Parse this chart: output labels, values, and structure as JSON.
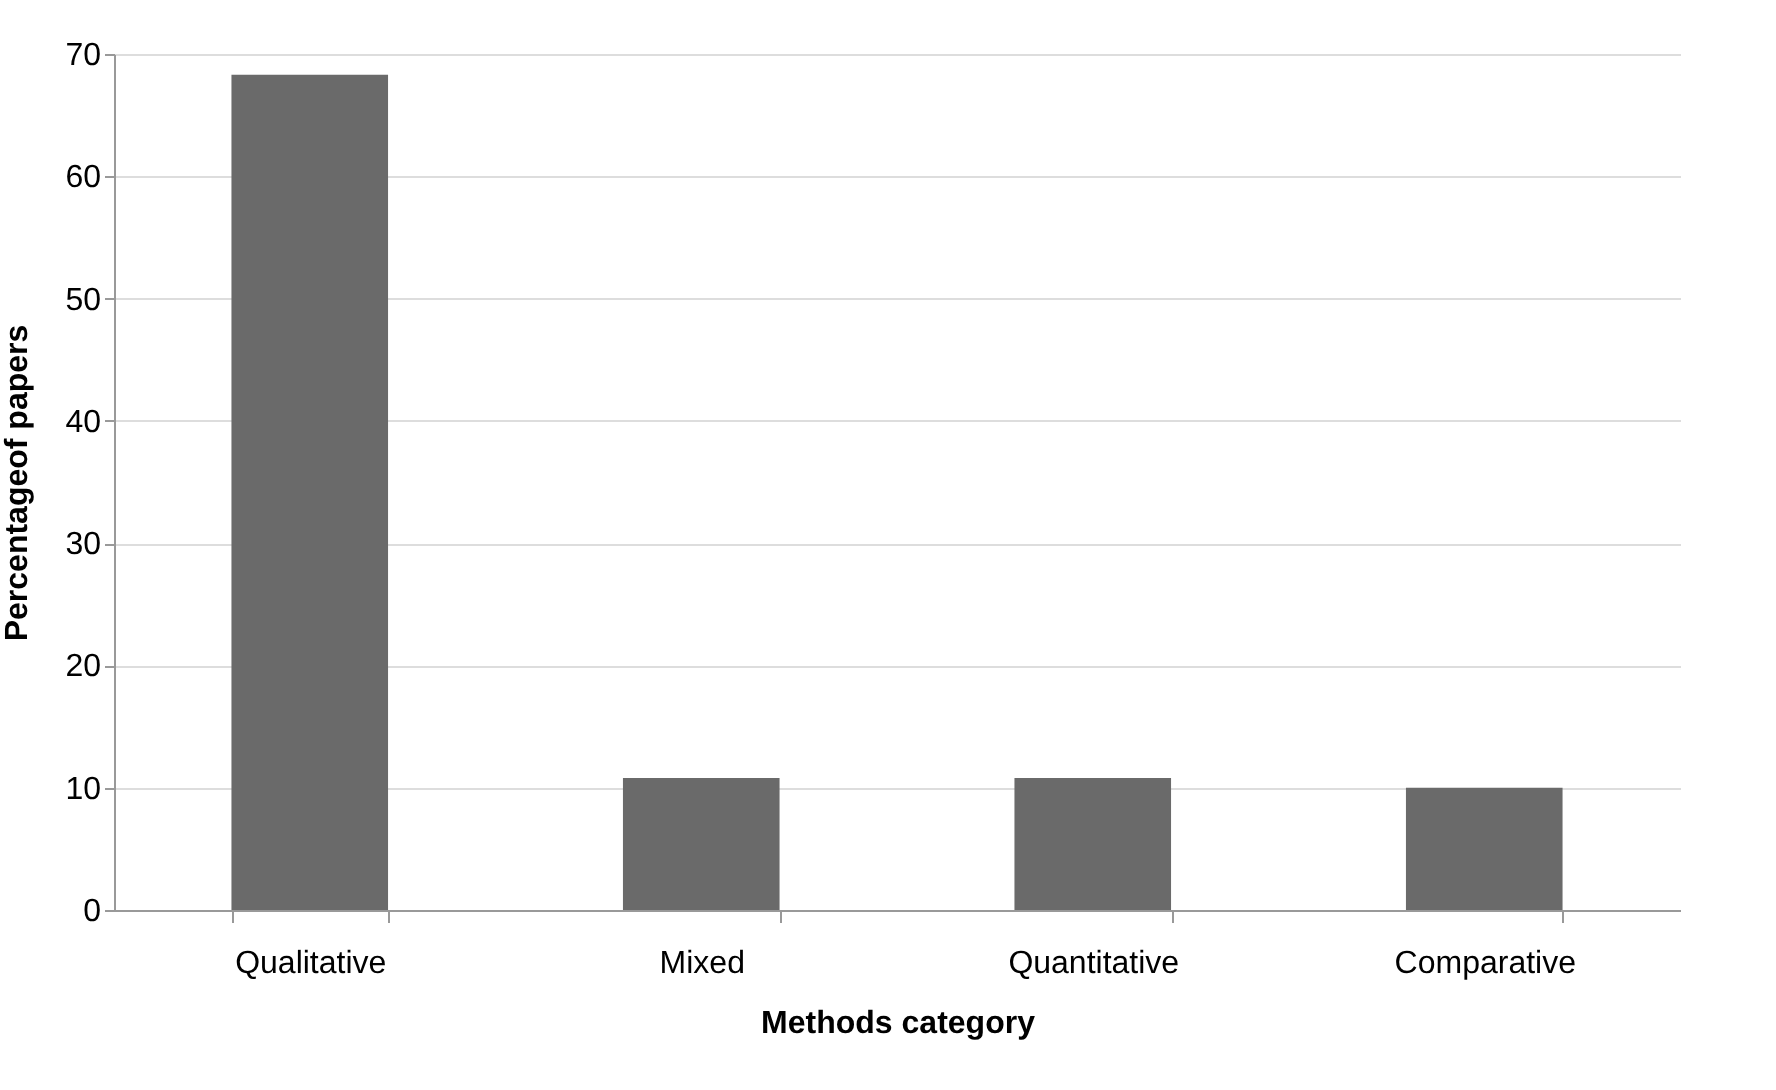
{
  "chart_data": {
    "type": "bar",
    "xlabel": "Methods category",
    "ylabel": "Percentageof papers",
    "categories": [
      "Qualitative",
      "Mixed",
      "Quantitative",
      "Comparative"
    ],
    "values": [
      68.3,
      10.8,
      10.8,
      10.0
    ],
    "color": "#6a6a6a",
    "ylim": [
      0,
      70
    ],
    "yticks": [
      0,
      10,
      20,
      30,
      40,
      50,
      60,
      70
    ],
    "grid": "y"
  }
}
